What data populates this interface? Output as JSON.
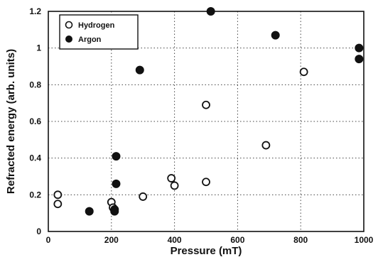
{
  "chart_data": {
    "type": "scatter",
    "title": "",
    "xlabel": "Pressure (mT)",
    "ylabel": "Refracted energy (arb. units)",
    "xlim": [
      0,
      1000
    ],
    "ylim": [
      0,
      1.2
    ],
    "xticks": [
      0,
      200,
      400,
      600,
      800,
      1000
    ],
    "yticks": [
      0,
      0.2,
      0.4,
      0.6,
      0.8,
      1,
      1.2
    ],
    "xtick_labels": [
      "0",
      "200",
      "400",
      "600",
      "800",
      "1000"
    ],
    "ytick_labels": [
      "0",
      "0.2",
      "0.4",
      "0.6",
      "0.8",
      "1",
      "1.2"
    ],
    "grid": true,
    "legend_position": "top-left",
    "series": [
      {
        "name": "Hydrogen",
        "marker": "open-circle",
        "points": [
          [
            30,
            0.2
          ],
          [
            30,
            0.15
          ],
          [
            200,
            0.16
          ],
          [
            205,
            0.13
          ],
          [
            300,
            0.19
          ],
          [
            390,
            0.29
          ],
          [
            400,
            0.25
          ],
          [
            500,
            0.27
          ],
          [
            500,
            0.69
          ],
          [
            690,
            0.47
          ],
          [
            810,
            0.87
          ]
        ]
      },
      {
        "name": "Argon",
        "marker": "filled-circle",
        "points": [
          [
            130,
            0.11
          ],
          [
            210,
            0.12
          ],
          [
            210,
            0.11
          ],
          [
            215,
            0.26
          ],
          [
            215,
            0.41
          ],
          [
            290,
            0.88
          ],
          [
            515,
            1.2
          ],
          [
            720,
            1.07
          ],
          [
            985,
            1.0
          ],
          [
            985,
            0.94
          ]
        ]
      }
    ]
  }
}
